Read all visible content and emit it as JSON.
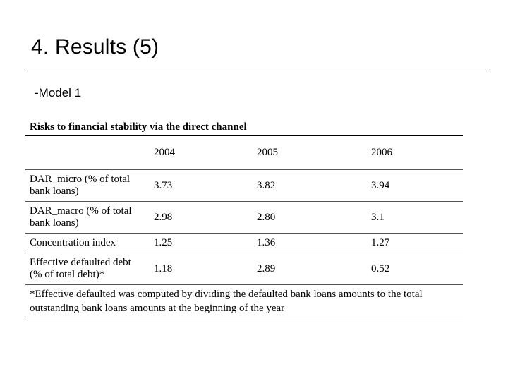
{
  "slide": {
    "title": "4. Results (5)",
    "subtitle": "-Model 1"
  },
  "table": {
    "caption": "Risks to financial stability via the direct channel",
    "columns": [
      "",
      "2004",
      "2005",
      "2006"
    ],
    "rows": [
      {
        "label": "DAR_micro (% of total bank loans)",
        "values": [
          "3.73",
          "3.82",
          "3.94"
        ]
      },
      {
        "label": "DAR_macro (% of total bank loans)",
        "values": [
          "2.98",
          "2.80",
          "3.1"
        ]
      },
      {
        "label": "Concentration index",
        "values": [
          "1.25",
          "1.36",
          "1.27"
        ]
      },
      {
        "label": "Effective defaulted debt (% of total debt)*",
        "values": [
          "1.18",
          "2.89",
          "0.52"
        ]
      }
    ],
    "footnote": "*Effective defaulted was computed by dividing the defaulted bank loans amounts to the total outstanding bank loans amounts at the beginning of the year"
  }
}
